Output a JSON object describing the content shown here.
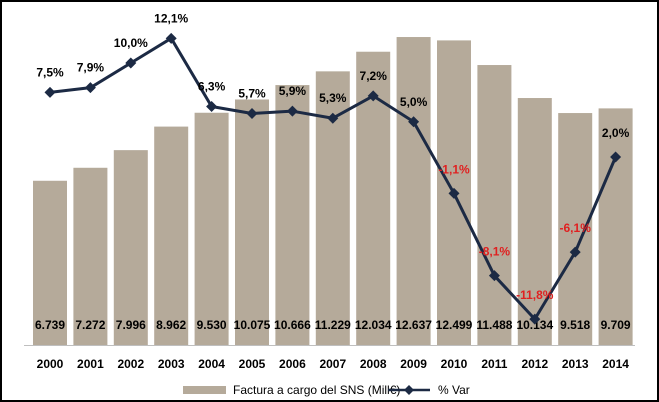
{
  "chart_data": {
    "type": "bar",
    "categories": [
      "2000",
      "2001",
      "2002",
      "2003",
      "2004",
      "2005",
      "2006",
      "2007",
      "2008",
      "2009",
      "2010",
      "2011",
      "2012",
      "2013",
      "2014"
    ],
    "series": [
      {
        "name": "Factura a cargo del SNS (Mill€)",
        "kind": "bar",
        "values": [
          6739,
          7272,
          7996,
          8962,
          9530,
          10075,
          10666,
          11229,
          12034,
          12637,
          12499,
          11488,
          10134,
          9518,
          9709
        ],
        "labels": [
          "6.739",
          "7.272",
          "7.996",
          "8.962",
          "9.530",
          "10.075",
          "10.666",
          "11.229",
          "12.034",
          "12.637",
          "12.499",
          "11.488",
          "10.134",
          "9.518",
          "9.709"
        ],
        "color": "#b5aa9a"
      },
      {
        "name": "% Var",
        "kind": "line",
        "values": [
          7.5,
          7.9,
          10.0,
          12.1,
          6.3,
          5.7,
          5.9,
          5.3,
          7.2,
          5.0,
          -1.1,
          -8.1,
          -11.8,
          -6.1,
          2.0
        ],
        "labels": [
          "7,5%",
          "7,9%",
          "10,0%",
          "12,1%",
          "6,3%",
          "5,7%",
          "5,9%",
          "5,3%",
          "7,2%",
          "5,0%",
          "-1,1%",
          "-8,1%",
          "-11,8%",
          "-6,1%",
          "2,0%"
        ],
        "color": "#1c2a44",
        "negative_label_color": "#e02020"
      }
    ],
    "bar_axis_range": [
      0,
      13500
    ],
    "line_axis_range": [
      -14,
      14
    ],
    "legend_position": "bottom",
    "grid": false
  }
}
